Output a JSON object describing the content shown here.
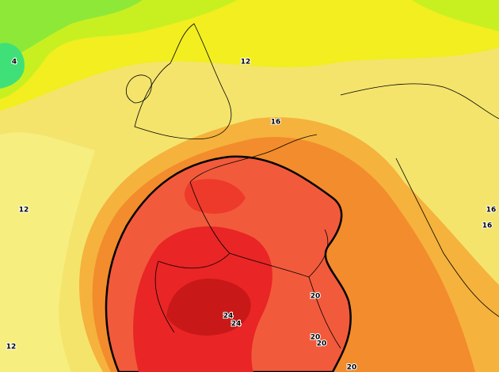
{
  "map": {
    "contour_labels": [
      4,
      12,
      16,
      12,
      16,
      16,
      20,
      24,
      24,
      20,
      20,
      20,
      12
    ]
  }
}
